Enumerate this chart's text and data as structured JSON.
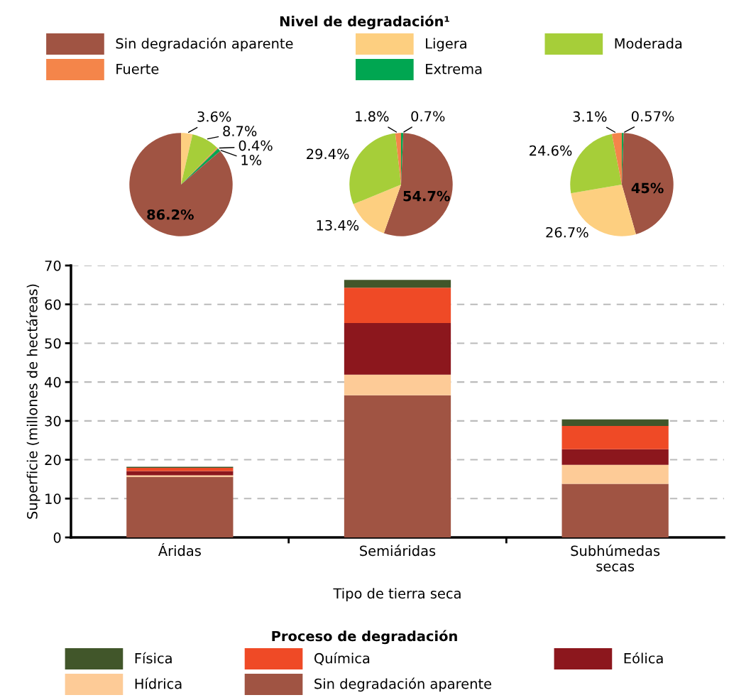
{
  "chart_data": [
    {
      "type": "pie",
      "legend_title": "Nivel de degradación¹",
      "legend": "top",
      "categories": [
        "Ligera",
        "Moderada",
        "Fuerte",
        "Extrema",
        "Sin degradación aparente"
      ],
      "values": [
        3.6,
        8.7,
        0.4,
        1,
        86.2
      ],
      "value_labels": [
        "3.6%",
        "8.7%",
        "0.4%",
        "1%",
        "86.2%"
      ],
      "colors": [
        "#fdcf80",
        "#a6ce39",
        "#f4854a",
        "#00a651",
        "#a05443"
      ]
    },
    {
      "type": "pie",
      "categories": [
        null,
        null,
        null,
        null,
        null
      ],
      "values": [
        0.7,
        54.7,
        13.4,
        29.4,
        1.8
      ],
      "value_labels": [
        "0.7%",
        "54.7%",
        "13.4%",
        "29.4%",
        "1.8%"
      ],
      "colors": [
        "#00a651",
        "#a05443",
        "#fdcf80",
        "#a6ce39",
        "#f4854a"
      ]
    },
    {
      "type": "pie",
      "categories": [
        null,
        null,
        null,
        null,
        null
      ],
      "values": [
        0.57,
        45,
        26.7,
        24.6,
        3.1
      ],
      "value_labels": [
        "0.57%",
        "45%",
        "26.7%",
        "24.6%",
        "3.1%"
      ],
      "colors": [
        "#00a651",
        "#a05443",
        "#fdcf80",
        "#a6ce39",
        "#f4854a"
      ]
    },
    {
      "type": "bar",
      "stacked": true,
      "xlabel": "Tipo de tierra seca",
      "ylabel": "Superficie (millones de hectáreas)",
      "legend_title": "Proceso de degradación",
      "legend": "bottom",
      "grid": "y",
      "categories": [
        "Áridas",
        "Semiáridas",
        "Subhúmedas\nsecas"
      ],
      "ylim": [
        0,
        70
      ],
      "yticks": [
        0,
        10,
        20,
        30,
        40,
        50,
        60,
        70
      ],
      "series": [
        {
          "name": "Sin degradación aparente",
          "color": "#a05443",
          "values": [
            15.6,
            36.6,
            13.8
          ]
        },
        {
          "name": "Hídrica",
          "color": "#fdcb97",
          "values": [
            0.4,
            5.3,
            4.9
          ]
        },
        {
          "name": "Eólica",
          "color": "#8c171d",
          "values": [
            1.1,
            13.3,
            4.0
          ]
        },
        {
          "name": "Química",
          "color": "#ef4a26",
          "values": [
            0.8,
            9.1,
            6.0
          ]
        },
        {
          "name": "Física",
          "color": "#41562a",
          "values": [
            0.3,
            2.0,
            1.7
          ]
        }
      ]
    }
  ]
}
